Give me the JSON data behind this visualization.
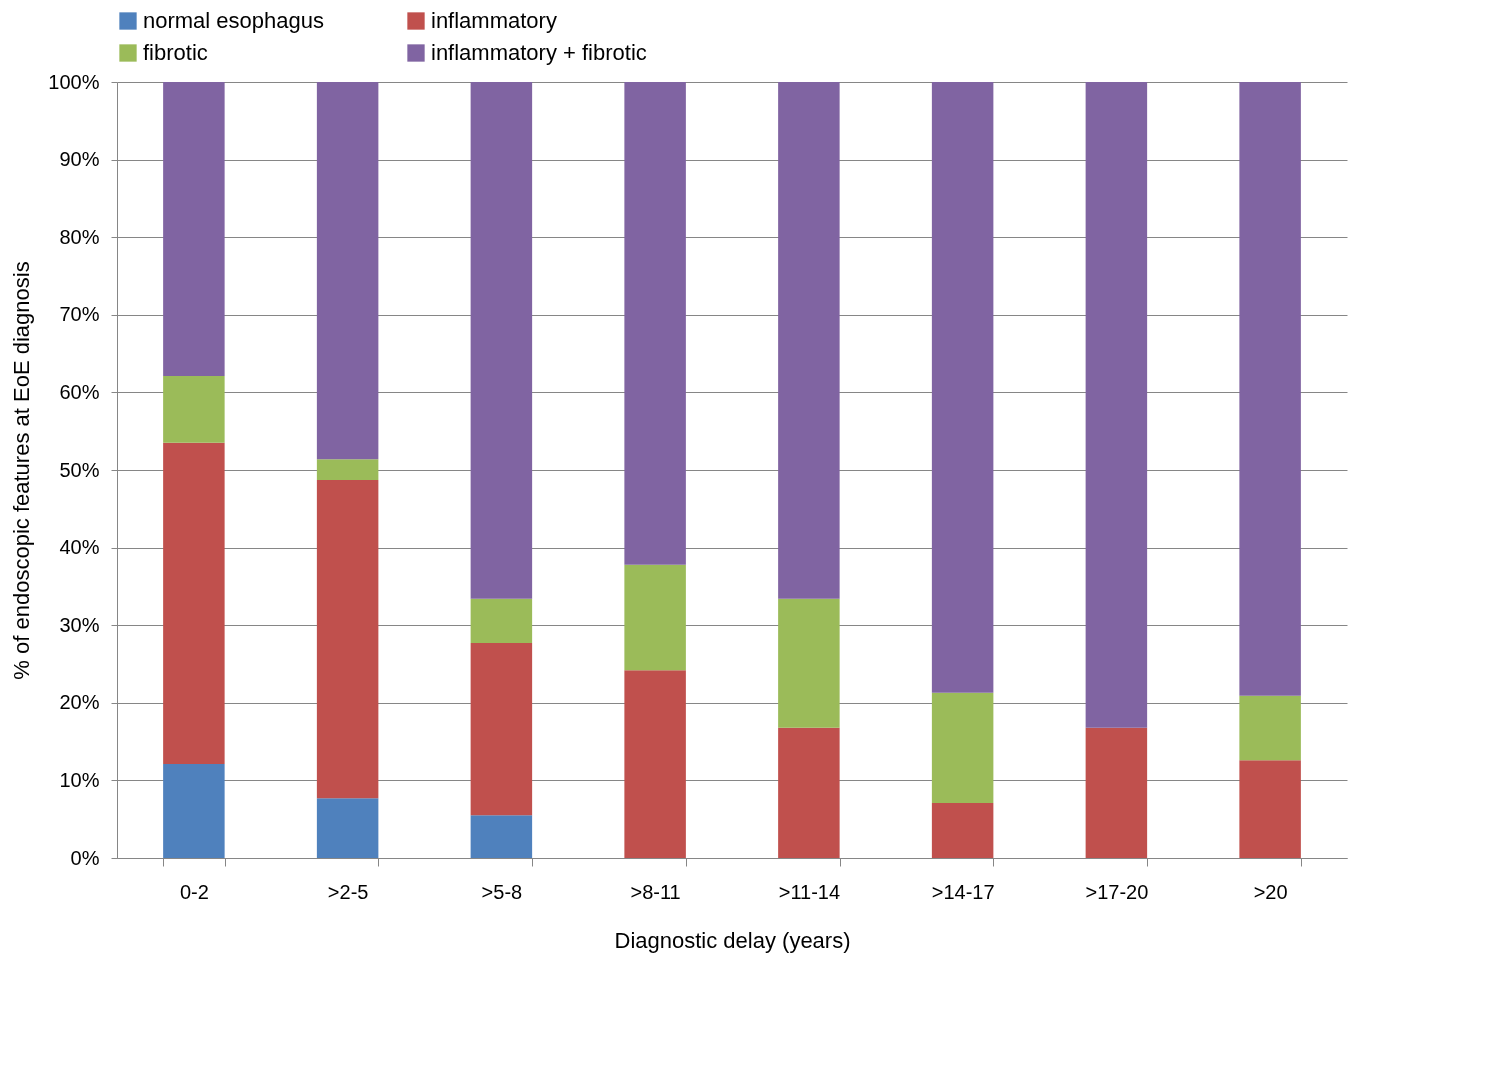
{
  "chart_data": {
    "type": "bar",
    "stacked": true,
    "xlabel": "Diagnostic delay (years)",
    "ylabel": "% of endoscopic features at EoE diagnosis",
    "categories": [
      "0-2",
      ">2-5",
      ">5-8",
      ">8-11",
      ">11-14",
      ">14-17",
      ">17-20",
      ">20"
    ],
    "series": [
      {
        "name": "normal esophagus",
        "color": "#4f81bd",
        "values": [
          12.1,
          7.7,
          5.5,
          0,
          0,
          0,
          0,
          0
        ]
      },
      {
        "name": "inflammatory",
        "color": "#c0504d",
        "values": [
          41.4,
          41.0,
          22.2,
          24.2,
          16.8,
          7.1,
          16.8,
          12.6
        ]
      },
      {
        "name": "fibrotic",
        "color": "#9bbb59",
        "values": [
          8.6,
          2.7,
          5.7,
          13.6,
          16.6,
          14.2,
          0,
          8.3
        ]
      },
      {
        "name": "inflammatory + fibrotic",
        "color": "#8064a2",
        "values": [
          37.9,
          48.6,
          66.6,
          62.2,
          66.6,
          78.7,
          83.2,
          79.1
        ]
      }
    ],
    "ylim": [
      0,
      100
    ],
    "yticks": [
      {
        "value": 0,
        "label": "0%"
      },
      {
        "value": 10,
        "label": "10%"
      },
      {
        "value": 20,
        "label": "20%"
      },
      {
        "value": 30,
        "label": "30%"
      },
      {
        "value": 40,
        "label": "40%"
      },
      {
        "value": 50,
        "label": "50%"
      },
      {
        "value": 60,
        "label": "60%"
      },
      {
        "value": 70,
        "label": "70%"
      },
      {
        "value": 80,
        "label": "80%"
      },
      {
        "value": 90,
        "label": "90%"
      },
      {
        "value": 100,
        "label": "100%"
      }
    ],
    "grid": "y",
    "legend": "top"
  }
}
